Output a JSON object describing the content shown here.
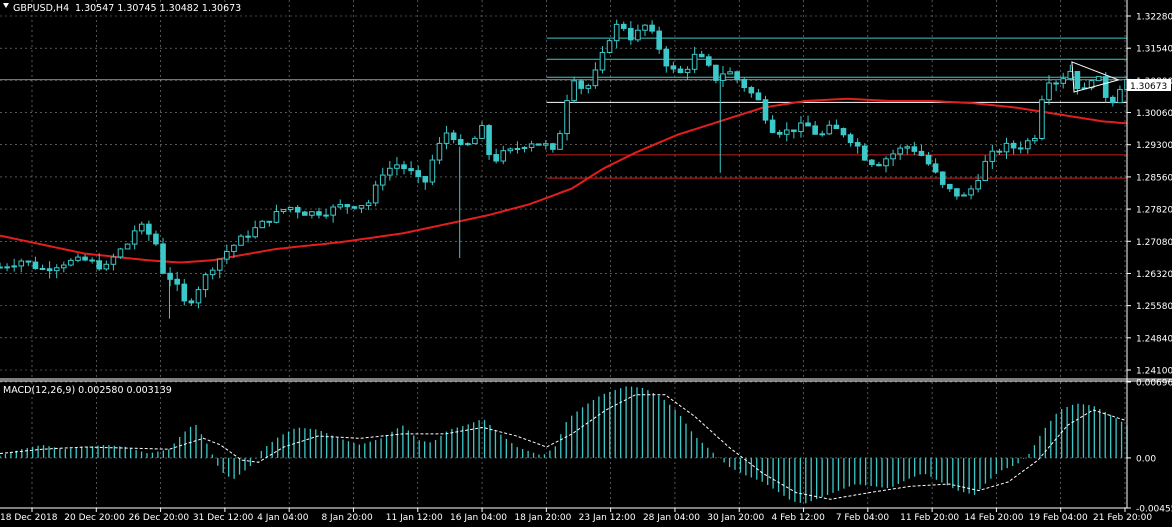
{
  "chart_header": {
    "symbol_timeframe": "GBPUSD,H4",
    "ohlc": "1.30547 1.30745 1.30482 1.30673"
  },
  "macd_header": {
    "label": "MACD(12,26,9) 0.002580 0.003139"
  },
  "colors": {
    "background": "#000000",
    "grid": "#8a8a8a",
    "candle": "#3cc8c8",
    "ma": "#e41e1e",
    "level_cyan": "#3cc8c8",
    "level_white": "#ffffff",
    "level_red": "#c81e1e",
    "text": "#ffffff",
    "price_tag_bg": "#ffffff",
    "price_tag_fg": "#000000"
  },
  "price_axis": {
    "ticks": [
      "1.32280",
      "1.31540",
      "1.30800",
      "1.30060",
      "1.29300",
      "1.28560",
      "1.27820",
      "1.27080",
      "1.26320",
      "1.25580",
      "1.24840",
      "1.24100"
    ],
    "current_price": "1.30673"
  },
  "macd_axis": {
    "ticks": [
      "0.006966",
      "0.00",
      "-0.00455"
    ]
  },
  "time_axis": {
    "labels": [
      "18 Dec 2018",
      "20 Dec 20:00",
      "26 Dec 20:00",
      "31 Dec 12:00",
      "4 Jan 04:00",
      "8 Jan 20:00",
      "11 Jan 12:00",
      "16 Jan 04:00",
      "18 Jan 20:00",
      "23 Jan 12:00",
      "28 Jan 04:00",
      "30 Jan 20:00",
      "4 Feb 12:00",
      "7 Feb 04:00",
      "11 Feb 20:00",
      "14 Feb 20:00",
      "19 Feb 04:00",
      "21 Feb 20:00"
    ]
  },
  "chart_data": {
    "type": "candlestick",
    "symbol": "GBPUSD",
    "timeframe": "H4",
    "price_range": [
      1.2405,
      1.3245
    ],
    "candle_count": 160,
    "close_path": [
      [
        0,
        1.265
      ],
      [
        10,
        1.2665
      ],
      [
        20,
        1.2645
      ],
      [
        30,
        1.266
      ],
      [
        40,
        1.2665
      ],
      [
        50,
        1.2648
      ],
      [
        55,
        1.268
      ],
      [
        60,
        1.27
      ],
      [
        65,
        1.2745
      ],
      [
        70,
        1.2725
      ],
      [
        74,
        1.27
      ],
      [
        77,
        1.264
      ],
      [
        82,
        1.262
      ],
      [
        85,
        1.259
      ],
      [
        88,
        1.256
      ],
      [
        93,
        1.26
      ],
      [
        100,
        1.265
      ],
      [
        108,
        1.269
      ],
      [
        116,
        1.272
      ],
      [
        122,
        1.274
      ],
      [
        128,
        1.276
      ],
      [
        136,
        1.2785
      ],
      [
        145,
        1.277
      ],
      [
        155,
        1.2775
      ],
      [
        160,
        1.2785
      ],
      [
        170,
        1.279
      ],
      [
        175,
        1.2795
      ],
      [
        180,
        1.286
      ],
      [
        188,
        1.288
      ],
      [
        194,
        1.286
      ],
      [
        200,
        1.283
      ],
      [
        205,
        1.29
      ],
      [
        212,
        1.296
      ],
      [
        218,
        1.291
      ],
      [
        224,
        1.2935
      ],
      [
        228,
        1.296
      ],
      [
        232,
        1.288
      ],
      [
        236,
        1.29
      ],
      [
        240,
        1.2905
      ],
      [
        250,
        1.293
      ],
      [
        258,
        1.292
      ],
      [
        262,
        1.29
      ],
      [
        266,
        1.299
      ],
      [
        270,
        1.308
      ],
      [
        276,
        1.304
      ],
      [
        282,
        1.309
      ],
      [
        288,
        1.3165
      ],
      [
        293,
        1.32
      ],
      [
        297,
        1.316
      ],
      [
        302,
        1.3175
      ],
      [
        305,
        1.319
      ],
      [
        310,
        1.315
      ],
      [
        316,
        1.309
      ],
      [
        322,
        1.308
      ],
      [
        328,
        1.312
      ],
      [
        332,
        1.311
      ],
      [
        338,
        1.307
      ],
      [
        343,
        1.309
      ],
      [
        350,
        1.306
      ],
      [
        358,
        1.302
      ],
      [
        364,
        1.296
      ],
      [
        370,
        1.295
      ],
      [
        376,
        1.296
      ],
      [
        381,
        1.2965
      ],
      [
        387,
        1.294
      ],
      [
        392,
        1.296
      ],
      [
        398,
        1.295
      ],
      [
        404,
        1.2925
      ],
      [
        409,
        1.289
      ],
      [
        414,
        1.288
      ],
      [
        419,
        1.2895
      ],
      [
        424,
        1.291
      ],
      [
        429,
        1.292
      ],
      [
        434,
        1.2905
      ],
      [
        440,
        1.287
      ],
      [
        445,
        1.283
      ],
      [
        450,
        1.2815
      ],
      [
        456,
        1.2805
      ],
      [
        461,
        1.2845
      ],
      [
        466,
        1.289
      ],
      [
        471,
        1.291
      ],
      [
        476,
        1.292
      ],
      [
        480,
        1.2915
      ],
      [
        484,
        1.2925
      ],
      [
        490,
        1.295
      ],
      [
        493,
        1.308
      ],
      [
        497,
        1.306
      ],
      [
        501,
        1.307
      ],
      [
        505,
        1.309
      ],
      [
        509,
        1.305
      ],
      [
        513,
        1.304
      ],
      [
        516,
        1.3085
      ],
      [
        520,
        1.3055
      ],
      [
        524,
        1.301
      ],
      [
        528,
        1.305
      ],
      [
        532,
        1.3067
      ]
    ],
    "moving_average_path": [
      [
        0,
        1.272
      ],
      [
        40,
        1.268
      ],
      [
        70,
        1.2665
      ],
      [
        85,
        1.266
      ],
      [
        100,
        1.2665
      ],
      [
        130,
        1.269
      ],
      [
        160,
        1.2705
      ],
      [
        190,
        1.2725
      ],
      [
        210,
        1.2745
      ],
      [
        230,
        1.2765
      ],
      [
        250,
        1.279
      ],
      [
        270,
        1.2825
      ],
      [
        285,
        1.287
      ],
      [
        300,
        1.2905
      ],
      [
        320,
        1.2945
      ],
      [
        340,
        1.2975
      ],
      [
        360,
        1.3005
      ],
      [
        380,
        1.302
      ],
      [
        400,
        1.3025
      ],
      [
        420,
        1.302
      ],
      [
        440,
        1.302
      ],
      [
        460,
        1.3015
      ],
      [
        480,
        1.3005
      ],
      [
        500,
        1.299
      ],
      [
        520,
        1.2975
      ],
      [
        532,
        1.297
      ]
    ],
    "horizontal_levels": [
      {
        "price": 1.316,
        "color": "cyan"
      },
      {
        "price": 1.3113,
        "color": "cyan"
      },
      {
        "price": 1.3073,
        "color": "cyan"
      },
      {
        "price": 1.3017,
        "color": "white"
      },
      {
        "price": 1.29,
        "color": "red"
      },
      {
        "price": 1.2848,
        "color": "red"
      }
    ],
    "macd": {
      "name": "MACD(12,26,9)",
      "range": [
        -0.0046,
        0.00697
      ],
      "histogram_path": [
        [
          0,
          0.0002
        ],
        [
          10,
          0.0008
        ],
        [
          20,
          0.0012
        ],
        [
          30,
          0.0008
        ],
        [
          40,
          0.001
        ],
        [
          50,
          0.0012
        ],
        [
          60,
          0.001
        ],
        [
          70,
          0.0004
        ],
        [
          80,
          0.0008
        ],
        [
          86,
          0.0022
        ],
        [
          92,
          0.0032
        ],
        [
          98,
          0.0012
        ],
        [
          104,
          -0.0012
        ],
        [
          110,
          -0.002
        ],
        [
          118,
          -0.0008
        ],
        [
          124,
          0.0008
        ],
        [
          132,
          0.002
        ],
        [
          140,
          0.0028
        ],
        [
          150,
          0.0026
        ],
        [
          160,
          0.0018
        ],
        [
          170,
          0.0012
        ],
        [
          180,
          0.0018
        ],
        [
          190,
          0.003
        ],
        [
          198,
          0.0016
        ],
        [
          204,
          0.0014
        ],
        [
          212,
          0.0026
        ],
        [
          220,
          0.003
        ],
        [
          228,
          0.0036
        ],
        [
          236,
          0.0022
        ],
        [
          244,
          0.001
        ],
        [
          250,
          0.0006
        ],
        [
          256,
          0.0002
        ],
        [
          262,
          0.001
        ],
        [
          268,
          0.0036
        ],
        [
          276,
          0.0048
        ],
        [
          284,
          0.0058
        ],
        [
          290,
          0.0062
        ],
        [
          296,
          0.0066
        ],
        [
          304,
          0.0064
        ],
        [
          312,
          0.0056
        ],
        [
          320,
          0.0042
        ],
        [
          328,
          0.002
        ],
        [
          336,
          0.0006
        ],
        [
          344,
          -0.0008
        ],
        [
          352,
          -0.0016
        ],
        [
          360,
          -0.0022
        ],
        [
          368,
          -0.0032
        ],
        [
          374,
          -0.004
        ],
        [
          380,
          -0.0042
        ],
        [
          388,
          -0.0036
        ],
        [
          396,
          -0.003
        ],
        [
          404,
          -0.0024
        ],
        [
          412,
          -0.0026
        ],
        [
          420,
          -0.0028
        ],
        [
          428,
          -0.002
        ],
        [
          436,
          -0.0014
        ],
        [
          444,
          -0.0022
        ],
        [
          452,
          -0.003
        ],
        [
          460,
          -0.0034
        ],
        [
          466,
          -0.0022
        ],
        [
          472,
          -0.0012
        ],
        [
          480,
          -0.0006
        ],
        [
          486,
          0.0004
        ],
        [
          492,
          0.0024
        ],
        [
          500,
          0.0044
        ],
        [
          508,
          0.005
        ],
        [
          516,
          0.0048
        ],
        [
          524,
          0.004
        ],
        [
          532,
          0.003
        ]
      ],
      "signal_path": [
        [
          0,
          0.0004
        ],
        [
          20,
          0.0008
        ],
        [
          40,
          0.001
        ],
        [
          60,
          0.0009
        ],
        [
          80,
          0.0008
        ],
        [
          96,
          0.0018
        ],
        [
          104,
          0.0012
        ],
        [
          114,
          -0.0002
        ],
        [
          122,
          -0.0004
        ],
        [
          134,
          0.001
        ],
        [
          150,
          0.002
        ],
        [
          170,
          0.0018
        ],
        [
          190,
          0.0022
        ],
        [
          210,
          0.0022
        ],
        [
          228,
          0.0028
        ],
        [
          244,
          0.002
        ],
        [
          258,
          0.001
        ],
        [
          270,
          0.0022
        ],
        [
          286,
          0.0044
        ],
        [
          300,
          0.0058
        ],
        [
          314,
          0.0058
        ],
        [
          328,
          0.0038
        ],
        [
          344,
          0.001
        ],
        [
          360,
          -0.0014
        ],
        [
          376,
          -0.0032
        ],
        [
          392,
          -0.0038
        ],
        [
          410,
          -0.0032
        ],
        [
          430,
          -0.0026
        ],
        [
          448,
          -0.0024
        ],
        [
          462,
          -0.003
        ],
        [
          476,
          -0.0022
        ],
        [
          490,
          -0.0002
        ],
        [
          504,
          0.003
        ],
        [
          516,
          0.0044
        ],
        [
          532,
          0.0034
        ]
      ]
    }
  }
}
